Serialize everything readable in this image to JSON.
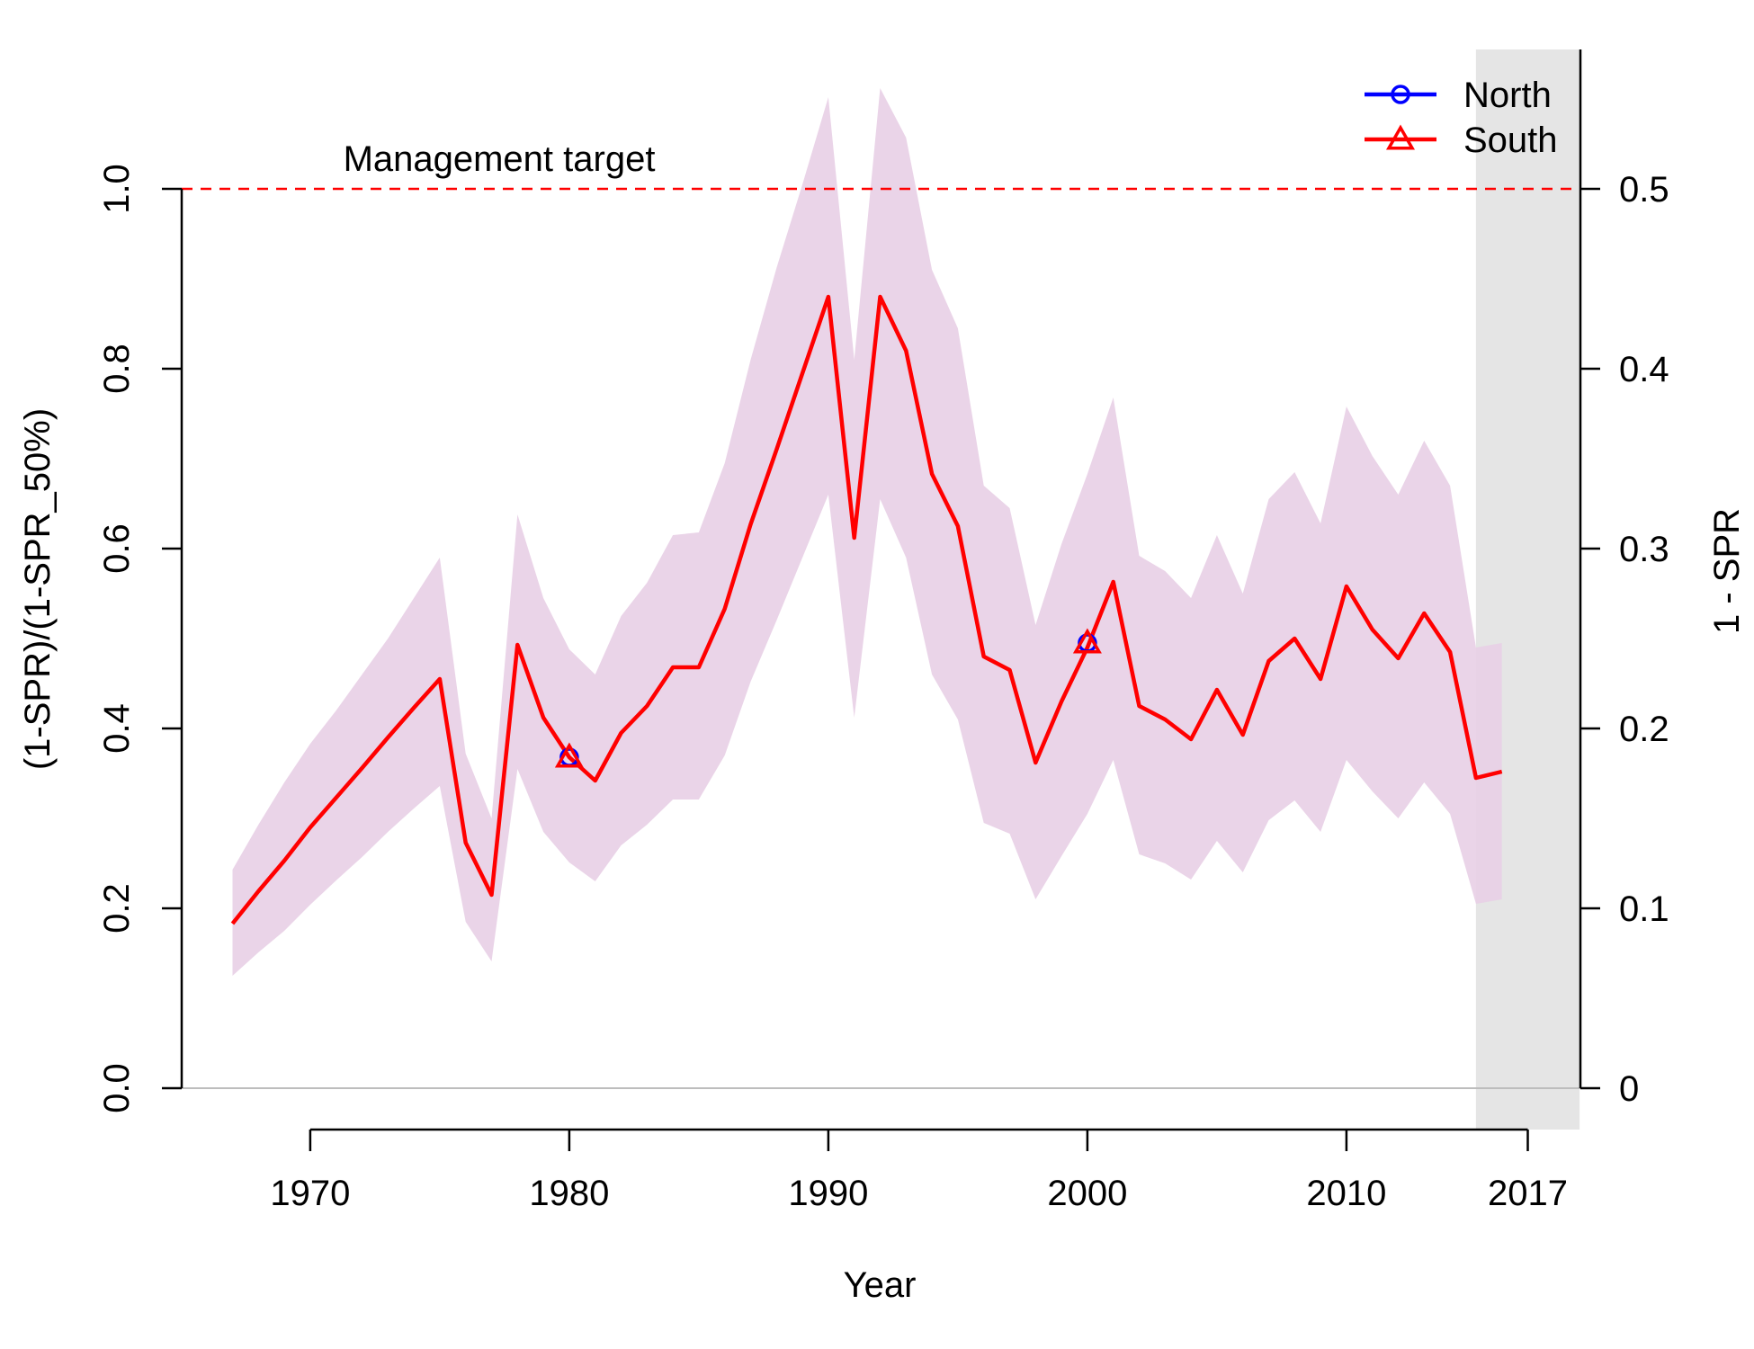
{
  "chart_data": {
    "type": "line",
    "xlabel": "Year",
    "ylabel_left": "(1-SPR)/(1-SPR_50%)",
    "ylabel_right": "1 - SPR",
    "xlim": [
      1962,
      2020
    ],
    "ylim_left": [
      0,
      1.1
    ],
    "ylim_right": [
      0,
      0.55
    ],
    "x_ticks": [
      1970,
      1980,
      1990,
      2000,
      2010,
      2017
    ],
    "x_tick_labels": [
      "1970",
      "1980",
      "1990",
      "2000",
      "2010",
      "2017"
    ],
    "y_left_ticks": [
      0.0,
      0.2,
      0.4,
      0.6,
      0.8,
      1.0
    ],
    "y_left_tick_labels": [
      "0.0",
      "0.2",
      "0.4",
      "0.6",
      "0.8",
      "1.0"
    ],
    "y_right_ticks": [
      0,
      0.1,
      0.2,
      0.3,
      0.4,
      0.5
    ],
    "y_right_tick_labels": [
      "0",
      "0.1",
      "0.2",
      "0.3",
      "0.4",
      "0.5"
    ],
    "reference_line": {
      "y": 1.0,
      "label": "Management target",
      "color": "#ff0000"
    },
    "forecast_region": {
      "x_start": 2015,
      "x_end": 2019
    },
    "legend": {
      "position": "top-right",
      "entries": [
        {
          "name": "North",
          "color": "#0000ff",
          "marker": "circle"
        },
        {
          "name": "South",
          "color": "#ff0000",
          "marker": "triangle"
        }
      ]
    },
    "series": [
      {
        "name": "South",
        "color": "#ff0000",
        "x": [
          1967,
          1968,
          1969,
          1970,
          1971,
          1972,
          1973,
          1974,
          1975,
          1976,
          1977,
          1978,
          1979,
          1980,
          1981,
          1982,
          1983,
          1984,
          1985,
          1986,
          1987,
          1988,
          1989,
          1990,
          1991,
          1992,
          1993,
          1994,
          1995,
          1996,
          1997,
          1998,
          1999,
          2000,
          2001,
          2002,
          2003,
          2004,
          2005,
          2006,
          2007,
          2008,
          2009,
          2010,
          2011,
          2012,
          2013,
          2014,
          2015,
          2016
        ],
        "y": [
          0.183,
          0.219,
          0.253,
          0.29,
          0.323,
          0.356,
          0.39,
          0.423,
          0.455,
          0.273,
          0.215,
          0.493,
          0.412,
          0.368,
          0.342,
          0.395,
          0.425,
          0.468,
          0.468,
          0.533,
          0.627,
          0.71,
          0.795,
          0.88,
          0.612,
          0.88,
          0.82,
          0.683,
          0.625,
          0.48,
          0.465,
          0.362,
          0.43,
          0.49,
          0.563,
          0.425,
          0.41,
          0.388,
          0.443,
          0.393,
          0.475,
          0.5,
          0.455,
          0.558,
          0.51,
          0.478,
          0.528,
          0.485,
          0.345,
          0.352
        ],
        "lower": [
          0.125,
          0.151,
          0.175,
          0.204,
          0.231,
          0.257,
          0.285,
          0.311,
          0.336,
          0.185,
          0.141,
          0.355,
          0.285,
          0.251,
          0.23,
          0.27,
          0.293,
          0.321,
          0.321,
          0.37,
          0.452,
          0.52,
          0.59,
          0.66,
          0.412,
          0.655,
          0.59,
          0.46,
          0.41,
          0.295,
          0.283,
          0.21,
          0.258,
          0.305,
          0.365,
          0.26,
          0.25,
          0.232,
          0.275,
          0.24,
          0.298,
          0.32,
          0.285,
          0.365,
          0.33,
          0.3,
          0.34,
          0.305,
          0.205,
          0.21
        ],
        "upper": [
          0.243,
          0.293,
          0.34,
          0.383,
          0.42,
          0.46,
          0.5,
          0.545,
          0.59,
          0.372,
          0.3,
          0.638,
          0.545,
          0.488,
          0.46,
          0.525,
          0.562,
          0.615,
          0.618,
          0.695,
          0.81,
          0.912,
          1.005,
          1.102,
          0.81,
          1.112,
          1.057,
          0.91,
          0.845,
          0.67,
          0.645,
          0.515,
          0.605,
          0.683,
          0.768,
          0.592,
          0.575,
          0.545,
          0.615,
          0.55,
          0.655,
          0.685,
          0.628,
          0.758,
          0.703,
          0.66,
          0.72,
          0.67,
          0.49,
          0.495
        ]
      },
      {
        "name": "North",
        "color": "#0000ff",
        "x": [
          1980,
          2000
        ],
        "y": [
          0.368,
          0.495
        ]
      }
    ]
  }
}
